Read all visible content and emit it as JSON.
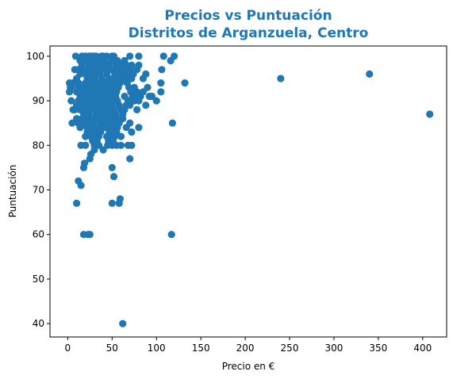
{
  "chart_data": {
    "type": "scatter",
    "title": [
      "Precios vs Puntuación",
      "Distritos de Arganzuela, Centro"
    ],
    "xlabel": "Precio en €",
    "ylabel": "Puntuación",
    "xlim": [
      -20,
      427
    ],
    "ylim": [
      37,
      102.3
    ],
    "xticks": [
      0,
      50,
      100,
      150,
      200,
      250,
      300,
      350,
      400
    ],
    "yticks": [
      40,
      50,
      60,
      70,
      80,
      90,
      100
    ],
    "grid": false,
    "legend": "none",
    "color": "#1f77b4",
    "title_color": "#1f77b4",
    "points": [
      [
        9,
        100
      ],
      [
        30,
        100
      ],
      [
        50,
        100
      ],
      [
        70,
        100
      ],
      [
        80,
        100
      ],
      [
        108,
        100
      ],
      [
        120,
        100
      ],
      [
        116,
        99
      ],
      [
        2,
        94
      ],
      [
        3,
        93
      ],
      [
        2,
        92
      ],
      [
        4,
        90
      ],
      [
        6,
        88
      ],
      [
        5,
        85
      ],
      [
        4,
        93
      ],
      [
        6,
        94
      ],
      [
        60,
        98
      ],
      [
        65,
        97
      ],
      [
        70,
        96
      ],
      [
        72,
        95
      ],
      [
        78,
        97
      ],
      [
        80,
        98
      ],
      [
        85,
        95
      ],
      [
        88,
        96
      ],
      [
        75,
        93
      ],
      [
        78,
        92
      ],
      [
        82,
        91
      ],
      [
        85,
        92
      ],
      [
        90,
        93
      ],
      [
        92,
        91
      ],
      [
        100,
        90
      ],
      [
        105,
        92
      ],
      [
        105,
        94
      ],
      [
        106,
        97
      ],
      [
        132,
        94
      ],
      [
        80,
        90
      ],
      [
        88,
        89
      ],
      [
        95,
        91
      ],
      [
        70,
        89
      ],
      [
        68,
        90
      ],
      [
        64,
        91
      ],
      [
        62,
        86
      ],
      [
        66,
        84
      ],
      [
        70,
        85
      ],
      [
        72,
        83
      ],
      [
        80,
        84
      ],
      [
        78,
        88
      ],
      [
        60,
        82
      ],
      [
        240,
        95
      ],
      [
        340,
        96
      ],
      [
        408,
        87
      ],
      [
        118,
        85
      ],
      [
        117,
        60
      ],
      [
        62,
        40
      ],
      [
        18,
        60
      ],
      [
        23,
        60
      ],
      [
        25,
        60
      ],
      [
        10,
        67
      ],
      [
        50,
        67
      ],
      [
        58,
        67
      ],
      [
        59,
        68
      ],
      [
        12,
        72
      ],
      [
        15,
        71
      ],
      [
        18,
        75
      ],
      [
        19,
        76
      ],
      [
        50,
        75
      ],
      [
        52,
        73
      ],
      [
        70,
        77
      ],
      [
        25,
        77
      ],
      [
        26,
        78
      ],
      [
        30,
        79
      ],
      [
        35,
        80
      ],
      [
        15,
        80
      ],
      [
        20,
        80
      ],
      [
        40,
        79
      ],
      [
        45,
        80
      ],
      [
        50,
        80
      ],
      [
        55,
        80
      ],
      [
        60,
        80
      ],
      [
        68,
        80
      ],
      [
        72,
        80
      ],
      [
        30,
        82
      ],
      [
        35,
        83
      ],
      [
        40,
        84
      ],
      [
        20,
        82
      ],
      [
        22,
        83
      ],
      [
        25,
        84
      ],
      [
        10,
        86
      ],
      [
        12,
        85
      ],
      [
        14,
        84
      ],
      [
        16,
        86
      ],
      [
        18,
        87
      ],
      [
        8,
        88
      ],
      [
        10,
        89
      ],
      [
        12,
        90
      ],
      [
        14,
        91
      ],
      [
        16,
        92
      ],
      [
        18,
        93
      ],
      [
        20,
        94
      ],
      [
        22,
        95
      ],
      [
        24,
        96
      ],
      [
        26,
        97
      ],
      [
        28,
        98
      ],
      [
        30,
        99
      ],
      [
        32,
        98
      ],
      [
        34,
        97
      ],
      [
        36,
        96
      ],
      [
        38,
        95
      ],
      [
        40,
        94
      ],
      [
        42,
        93
      ],
      [
        44,
        92
      ],
      [
        46,
        91
      ],
      [
        48,
        90
      ],
      [
        50,
        89
      ],
      [
        52,
        88
      ],
      [
        54,
        87
      ],
      [
        56,
        86
      ],
      [
        58,
        85
      ],
      [
        8,
        97
      ],
      [
        10,
        95
      ],
      [
        12,
        94
      ],
      [
        14,
        96
      ],
      [
        16,
        98
      ],
      [
        18,
        99
      ],
      [
        20,
        100
      ],
      [
        22,
        99
      ],
      [
        24,
        98
      ],
      [
        26,
        100
      ],
      [
        28,
        96
      ],
      [
        30,
        95
      ],
      [
        32,
        94
      ],
      [
        34,
        93
      ],
      [
        36,
        92
      ],
      [
        38,
        91
      ],
      [
        40,
        90
      ],
      [
        42,
        89
      ],
      [
        44,
        88
      ],
      [
        46,
        87
      ],
      [
        48,
        86
      ],
      [
        50,
        85
      ],
      [
        52,
        84
      ],
      [
        54,
        83
      ],
      [
        20,
        89
      ],
      [
        22,
        88
      ],
      [
        24,
        87
      ],
      [
        26,
        86
      ],
      [
        28,
        85
      ],
      [
        30,
        84
      ],
      [
        32,
        86
      ],
      [
        34,
        88
      ],
      [
        36,
        90
      ],
      [
        38,
        89
      ],
      [
        40,
        88
      ],
      [
        42,
        87
      ],
      [
        44,
        86
      ],
      [
        46,
        85
      ],
      [
        48,
        84
      ],
      [
        50,
        83
      ],
      [
        25,
        91
      ],
      [
        27,
        92
      ],
      [
        29,
        93
      ],
      [
        31,
        91
      ],
      [
        33,
        90
      ],
      [
        35,
        89
      ],
      [
        37,
        88
      ],
      [
        39,
        87
      ],
      [
        41,
        86
      ],
      [
        43,
        85
      ],
      [
        45,
        84
      ],
      [
        47,
        83
      ],
      [
        49,
        82
      ],
      [
        51,
        81
      ],
      [
        53,
        82
      ],
      [
        55,
        83
      ],
      [
        20,
        91
      ],
      [
        22,
        92
      ],
      [
        24,
        93
      ],
      [
        26,
        94
      ],
      [
        28,
        95
      ],
      [
        30,
        96
      ],
      [
        32,
        97
      ],
      [
        34,
        98
      ],
      [
        36,
        99
      ],
      [
        38,
        100
      ],
      [
        40,
        98
      ],
      [
        42,
        97
      ],
      [
        44,
        96
      ],
      [
        46,
        95
      ],
      [
        48,
        94
      ],
      [
        50,
        93
      ],
      [
        52,
        92
      ],
      [
        54,
        91
      ],
      [
        56,
        90
      ],
      [
        58,
        89
      ],
      [
        60,
        88
      ],
      [
        62,
        87
      ],
      [
        64,
        88
      ],
      [
        66,
        89
      ],
      [
        15,
        90
      ],
      [
        17,
        89
      ],
      [
        19,
        88
      ],
      [
        21,
        87
      ],
      [
        23,
        86
      ],
      [
        25,
        85
      ],
      [
        27,
        84
      ],
      [
        29,
        83
      ],
      [
        31,
        82
      ],
      [
        33,
        81
      ],
      [
        35,
        82
      ],
      [
        37,
        83
      ],
      [
        39,
        84
      ],
      [
        41,
        85
      ],
      [
        43,
        86
      ],
      [
        45,
        87
      ],
      [
        47,
        88
      ],
      [
        49,
        89
      ],
      [
        51,
        90
      ],
      [
        53,
        91
      ],
      [
        55,
        92
      ],
      [
        57,
        93
      ],
      [
        59,
        94
      ],
      [
        61,
        95
      ],
      [
        63,
        96
      ],
      [
        65,
        95
      ],
      [
        67,
        94
      ],
      [
        69,
        93
      ],
      [
        71,
        92
      ],
      [
        73,
        91
      ],
      [
        75,
        90
      ],
      [
        77,
        91
      ],
      [
        12,
        97
      ],
      [
        14,
        99
      ],
      [
        16,
        100
      ],
      [
        18,
        97
      ],
      [
        20,
        96
      ],
      [
        22,
        97
      ],
      [
        24,
        100
      ],
      [
        26,
        98
      ],
      [
        28,
        100
      ],
      [
        30,
        97
      ],
      [
        32,
        100
      ],
      [
        34,
        99
      ],
      [
        36,
        97
      ],
      [
        38,
        98
      ],
      [
        40,
        100
      ],
      [
        42,
        99
      ],
      [
        44,
        100
      ],
      [
        46,
        98
      ],
      [
        48,
        97
      ],
      [
        50,
        99
      ],
      [
        52,
        100
      ],
      [
        54,
        98
      ],
      [
        56,
        99
      ],
      [
        58,
        97
      ],
      [
        60,
        96
      ],
      [
        62,
        97
      ],
      [
        64,
        99
      ],
      [
        66,
        98
      ],
      [
        68,
        96
      ],
      [
        70,
        97
      ],
      [
        72,
        98
      ],
      [
        74,
        96
      ],
      [
        10,
        92
      ],
      [
        12,
        93
      ],
      [
        14,
        88
      ],
      [
        16,
        89
      ],
      [
        18,
        90
      ],
      [
        20,
        92
      ],
      [
        22,
        90
      ],
      [
        24,
        91
      ],
      [
        26,
        92
      ],
      [
        28,
        93
      ],
      [
        30,
        91
      ],
      [
        32,
        92
      ],
      [
        34,
        91
      ],
      [
        36,
        93
      ],
      [
        38,
        94
      ],
      [
        40,
        92
      ],
      [
        42,
        91
      ],
      [
        44,
        90
      ],
      [
        46,
        89
      ],
      [
        48,
        88
      ],
      [
        50,
        87
      ],
      [
        52,
        86
      ],
      [
        54,
        85
      ],
      [
        56,
        84
      ],
      [
        28,
        89
      ],
      [
        30,
        88
      ],
      [
        32,
        87
      ],
      [
        34,
        86
      ],
      [
        36,
        85
      ],
      [
        38,
        86
      ],
      [
        40,
        87
      ],
      [
        42,
        88
      ],
      [
        44,
        89
      ],
      [
        46,
        90
      ],
      [
        48,
        91
      ],
      [
        50,
        92
      ],
      [
        52,
        93
      ],
      [
        54,
        94
      ],
      [
        56,
        95
      ],
      [
        58,
        96
      ],
      [
        20,
        85
      ],
      [
        22,
        84
      ],
      [
        24,
        83
      ],
      [
        26,
        82
      ],
      [
        28,
        81
      ],
      [
        30,
        80
      ],
      [
        32,
        81
      ],
      [
        34,
        82
      ],
      [
        36,
        84
      ],
      [
        38,
        85
      ],
      [
        40,
        86
      ],
      [
        42,
        84
      ],
      [
        44,
        82
      ],
      [
        46,
        81
      ],
      [
        48,
        82
      ],
      [
        50,
        84
      ],
      [
        27,
        95
      ],
      [
        29,
        94
      ],
      [
        31,
        93
      ],
      [
        33,
        92
      ],
      [
        35,
        91
      ],
      [
        37,
        90
      ],
      [
        39,
        91
      ],
      [
        41,
        92
      ],
      [
        43,
        94
      ],
      [
        45,
        93
      ],
      [
        47,
        92
      ],
      [
        49,
        91
      ],
      [
        51,
        95
      ],
      [
        53,
        96
      ],
      [
        55,
        97
      ],
      [
        57,
        98
      ],
      [
        18,
        85
      ],
      [
        20,
        86
      ],
      [
        22,
        87
      ],
      [
        24,
        88
      ],
      [
        26,
        89
      ],
      [
        28,
        90
      ],
      [
        30,
        90
      ],
      [
        32,
        89
      ],
      [
        34,
        90
      ],
      [
        36,
        87
      ],
      [
        38,
        86
      ],
      [
        40,
        85
      ],
      [
        42,
        86
      ],
      [
        44,
        87
      ],
      [
        46,
        88
      ],
      [
        48,
        89
      ]
    ]
  }
}
